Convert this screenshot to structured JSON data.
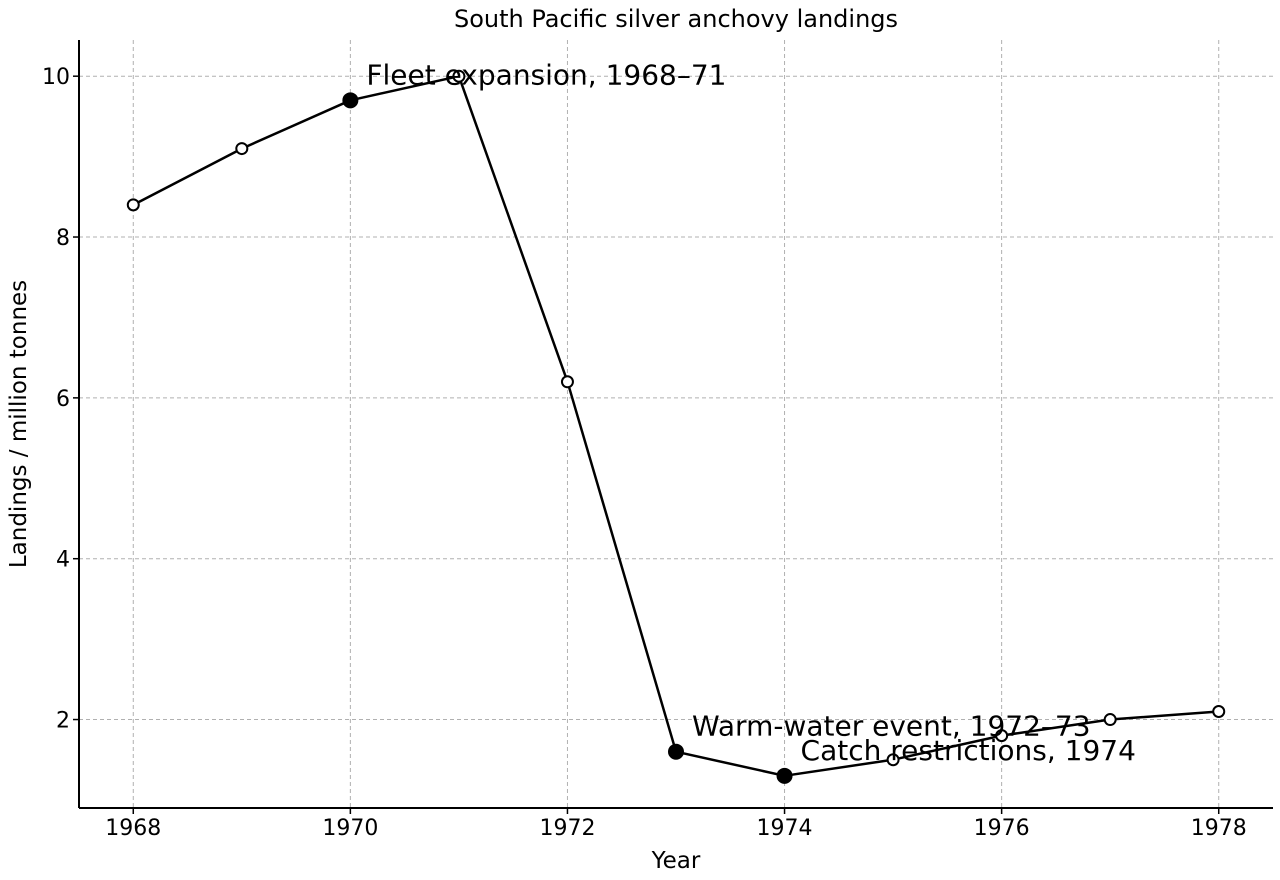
{
  "chart_data": {
    "type": "line",
    "title": "South Pacific silver anchovy landings",
    "xlabel": "Year",
    "ylabel": "Landings / million tonnes",
    "xlim": [
      1967.5,
      1978.5
    ],
    "ylim": [
      0.9,
      10.45
    ],
    "xticks": [
      1968,
      1970,
      1972,
      1974,
      1976,
      1978
    ],
    "yticks": [
      2,
      4,
      6,
      8,
      10
    ],
    "grid": true,
    "line_color": "#000000",
    "series": [
      {
        "x": [
          1968,
          1969,
          1970,
          1971,
          1972,
          1973,
          1974,
          1975,
          1976,
          1977,
          1978
        ],
        "y": [
          8.4,
          9.1,
          9.7,
          10.0,
          6.2,
          1.6,
          1.3,
          1.5,
          1.8,
          2.0,
          2.1
        ],
        "highlighted": [
          false,
          false,
          true,
          false,
          false,
          true,
          true,
          false,
          false,
          false,
          false
        ]
      }
    ],
    "annotations": [
      {
        "text": "Fleet expansion, 1968–71",
        "x": 1970,
        "y": 9.7
      },
      {
        "text": "Warm-water event, 1972–73",
        "x": 1973,
        "y": 1.6
      },
      {
        "text": "Catch restrictions, 1974",
        "x": 1974,
        "y": 1.3
      }
    ]
  }
}
